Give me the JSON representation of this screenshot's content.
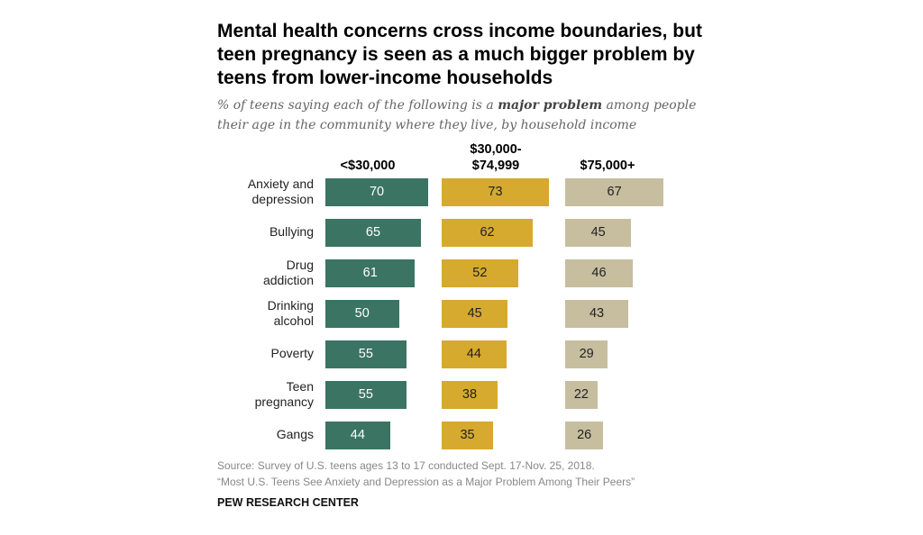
{
  "title": "Mental health concerns cross income boundaries, but teen pregnancy is seen as a much bigger problem by teens from lower-income households",
  "subtitle_pre": "% of teens saying each of the following is a ",
  "subtitle_bold": "major problem",
  "subtitle_post": " among people their age in the community where they live, by household income",
  "source": "Source: Survey of U.S. teens ages 13 to 17 conducted Sept. 17-Nov. 25, 2018.",
  "report": "“Most U.S. Teens See Anxiety and Depression as a Major Problem Among Their Peers”",
  "brand": "PEW RESEARCH CENTER",
  "chart_data": {
    "type": "bar",
    "orientation": "horizontal",
    "categories": [
      "Anxiety and depression",
      "Bullying",
      "Drug addiction",
      "Drinking alcohol",
      "Poverty",
      "Teen pregnancy",
      "Gangs"
    ],
    "series": [
      {
        "name": "<$30,000",
        "color": "#3b7462",
        "text_color": "#ffffff",
        "values": [
          70,
          65,
          61,
          50,
          55,
          55,
          44
        ]
      },
      {
        "name": "$30,000-$74,999",
        "color": "#d6a92f",
        "text_color": "#222222",
        "values": [
          73,
          62,
          52,
          45,
          44,
          38,
          35
        ]
      },
      {
        "name": "$75,000+",
        "color": "#c6be9f",
        "text_color": "#222222",
        "values": [
          67,
          45,
          46,
          43,
          29,
          22,
          26
        ]
      }
    ],
    "xlabel": "",
    "ylabel": "",
    "unit": "%"
  }
}
